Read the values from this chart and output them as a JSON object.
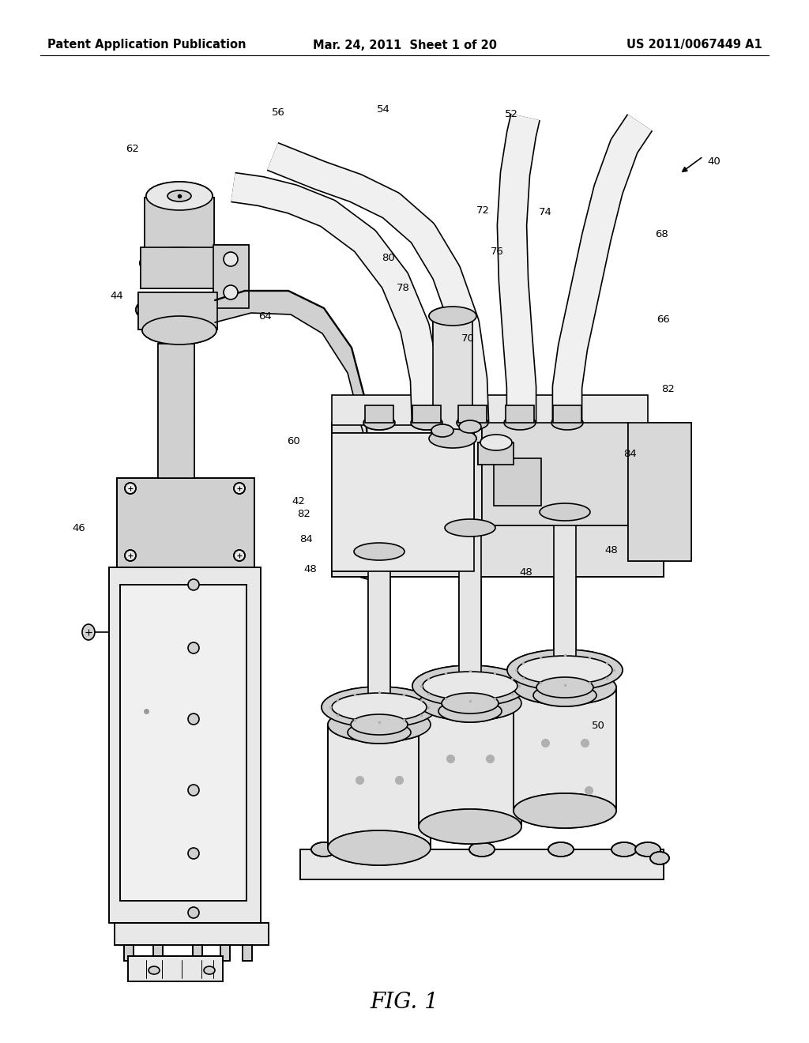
{
  "background_color": "#ffffff",
  "header_left": "Patent Application Publication",
  "header_center": "Mar. 24, 2011  Sheet 1 of 20",
  "header_right": "US 2011/0067449 A1",
  "figure_caption": "FIG. 1",
  "line_color": "#000000",
  "gray_light": "#e8e8e8",
  "gray_mid": "#d0d0d0",
  "gray_dark": "#b0b0b0",
  "font_size_header": 10.5,
  "font_size_labels": 9.5,
  "font_size_caption": 20,
  "lw": 1.2,
  "labels": [
    [
      352,
      143,
      "56"
    ],
    [
      485,
      138,
      "54"
    ],
    [
      647,
      145,
      "52"
    ],
    [
      168,
      188,
      "62"
    ],
    [
      148,
      375,
      "44"
    ],
    [
      100,
      668,
      "46"
    ],
    [
      336,
      400,
      "64"
    ],
    [
      371,
      558,
      "60"
    ],
    [
      378,
      635,
      "42"
    ],
    [
      385,
      650,
      "82"
    ],
    [
      388,
      682,
      "84"
    ],
    [
      393,
      720,
      "48"
    ],
    [
      611,
      267,
      "72"
    ],
    [
      690,
      268,
      "74"
    ],
    [
      629,
      319,
      "76"
    ],
    [
      491,
      327,
      "80"
    ],
    [
      510,
      365,
      "78"
    ],
    [
      592,
      428,
      "70"
    ],
    [
      837,
      296,
      "68"
    ],
    [
      840,
      405,
      "66"
    ],
    [
      846,
      492,
      "82"
    ],
    [
      798,
      575,
      "84"
    ],
    [
      666,
      724,
      "48"
    ],
    [
      774,
      697,
      "48"
    ],
    [
      757,
      918,
      "50"
    ],
    [
      904,
      204,
      "40"
    ]
  ]
}
